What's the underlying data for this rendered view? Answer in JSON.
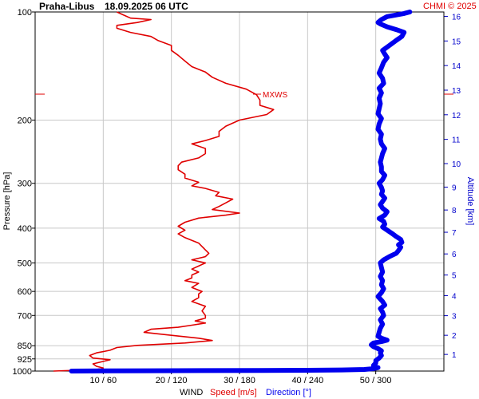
{
  "header": {
    "station": "Praha-Libus",
    "datetime": "18.09.2025 06 UTC",
    "copyright": "CHMI © 2025"
  },
  "colors": {
    "speed": "#e00000",
    "direction": "#0000ee",
    "grid": "#c8c8c8",
    "axis_right": "#0000cc"
  },
  "chart_data": {
    "type": "line",
    "y_axis": {
      "label": "Pressure [hPa]",
      "scale": "log",
      "ticks": [
        100,
        200,
        300,
        400,
        500,
        600,
        700,
        850,
        925,
        1000
      ],
      "range": [
        100,
        1000
      ]
    },
    "y2_axis": {
      "label": "Altitude [km]",
      "ticks": [
        1,
        2,
        3,
        4,
        5,
        6,
        7,
        8,
        9,
        10,
        11,
        12,
        13,
        14,
        15,
        16
      ]
    },
    "x_axis": {
      "ticks": [
        "10 / 60",
        "20 / 120",
        "30 / 180",
        "40 / 240",
        "50 / 300"
      ],
      "range_speed": [
        0,
        60
      ],
      "range_direction": [
        0,
        360
      ],
      "label_wind": "WIND",
      "label_speed": "Speed [m/s]",
      "label_direction": "Direction [°]"
    },
    "annotation": {
      "text": "MXWS",
      "pressure": 175
    },
    "series": [
      {
        "name": "Speed [m/s]",
        "points": [
          [
            1000,
            2.7
          ],
          [
            995,
            6
          ],
          [
            990,
            9
          ],
          [
            980,
            10
          ],
          [
            970,
            9
          ],
          [
            955,
            8.5
          ],
          [
            940,
            10
          ],
          [
            930,
            11
          ],
          [
            920,
            8.5
          ],
          [
            905,
            8
          ],
          [
            890,
            9
          ],
          [
            875,
            11
          ],
          [
            860,
            12
          ],
          [
            848,
            15
          ],
          [
            835,
            22
          ],
          [
            822,
            26
          ],
          [
            810,
            24
          ],
          [
            795,
            20
          ],
          [
            780,
            16
          ],
          [
            765,
            17
          ],
          [
            755,
            21
          ],
          [
            745,
            23
          ],
          [
            735,
            25
          ],
          [
            725,
            23.5
          ],
          [
            712,
            25
          ],
          [
            700,
            25
          ],
          [
            680,
            24.5
          ],
          [
            660,
            25
          ],
          [
            640,
            23
          ],
          [
            625,
            24
          ],
          [
            610,
            24
          ],
          [
            600,
            24.5
          ],
          [
            585,
            23
          ],
          [
            570,
            24
          ],
          [
            560,
            22
          ],
          [
            550,
            23
          ],
          [
            540,
            23
          ],
          [
            530,
            24
          ],
          [
            520,
            23
          ],
          [
            510,
            24
          ],
          [
            500,
            25
          ],
          [
            490,
            23
          ],
          [
            480,
            25
          ],
          [
            470,
            25.5
          ],
          [
            460,
            25
          ],
          [
            450,
            24.5
          ],
          [
            440,
            24
          ],
          [
            425,
            22
          ],
          [
            415,
            21
          ],
          [
            405,
            22
          ],
          [
            395,
            21
          ],
          [
            385,
            22
          ],
          [
            375,
            24
          ],
          [
            368,
            28
          ],
          [
            363,
            30
          ],
          [
            355,
            26
          ],
          [
            348,
            27
          ],
          [
            340,
            28
          ],
          [
            332,
            29
          ],
          [
            325,
            26.5
          ],
          [
            318,
            27
          ],
          [
            310,
            25
          ],
          [
            305,
            23
          ],
          [
            298,
            24
          ],
          [
            290,
            22
          ],
          [
            283,
            22
          ],
          [
            275,
            21
          ],
          [
            268,
            21
          ],
          [
            262,
            21.5
          ],
          [
            255,
            24
          ],
          [
            248,
            25
          ],
          [
            240,
            25
          ],
          [
            233,
            23
          ],
          [
            228,
            25
          ],
          [
            222,
            27
          ],
          [
            215,
            27
          ],
          [
            208,
            28
          ],
          [
            200,
            30
          ],
          [
            193,
            34
          ],
          [
            187,
            35
          ],
          [
            182,
            33
          ],
          [
            176,
            33
          ],
          [
            170,
            32.5
          ],
          [
            164,
            31
          ],
          [
            158,
            28
          ],
          [
            152,
            26
          ],
          [
            147,
            25
          ],
          [
            142,
            23
          ],
          [
            137,
            22
          ],
          [
            132,
            21
          ],
          [
            128,
            20
          ],
          [
            124,
            20
          ],
          [
            120,
            18
          ],
          [
            117,
            17
          ],
          [
            114,
            14
          ],
          [
            111,
            12
          ],
          [
            109,
            12
          ],
          [
            107,
            15
          ],
          [
            105,
            17
          ],
          [
            104,
            14
          ],
          [
            102,
            13
          ],
          [
            100,
            12
          ]
        ]
      },
      {
        "name": "Direction [°]",
        "points": [
          [
            1000,
            32
          ],
          [
            999,
            60
          ],
          [
            998,
            100
          ],
          [
            997,
            150
          ],
          [
            996,
            200
          ],
          [
            995,
            240
          ],
          [
            993,
            270
          ],
          [
            990,
            290
          ],
          [
            985,
            298
          ],
          [
            978,
            302
          ],
          [
            972,
            298
          ],
          [
            965,
            298
          ],
          [
            950,
            300
          ],
          [
            935,
            300
          ],
          [
            920,
            303
          ],
          [
            905,
            305
          ],
          [
            890,
            304
          ],
          [
            878,
            305
          ],
          [
            866,
            302
          ],
          [
            855,
            298
          ],
          [
            845,
            296
          ],
          [
            835,
            298
          ],
          [
            828,
            305
          ],
          [
            820,
            310
          ],
          [
            810,
            305
          ],
          [
            800,
            302
          ],
          [
            780,
            303
          ],
          [
            760,
            304
          ],
          [
            740,
            306
          ],
          [
            720,
            304
          ],
          [
            700,
            307
          ],
          [
            685,
            306
          ],
          [
            670,
            304
          ],
          [
            655,
            308
          ],
          [
            640,
            306
          ],
          [
            620,
            302
          ],
          [
            605,
            305
          ],
          [
            590,
            307
          ],
          [
            575,
            305
          ],
          [
            560,
            306
          ],
          [
            545,
            304
          ],
          [
            530,
            306
          ],
          [
            515,
            305
          ],
          [
            500,
            304
          ],
          [
            490,
            307
          ],
          [
            480,
            312
          ],
          [
            470,
            318
          ],
          [
            462,
            320
          ],
          [
            452,
            322
          ],
          [
            445,
            320
          ],
          [
            438,
            323
          ],
          [
            430,
            322
          ],
          [
            422,
            318
          ],
          [
            413,
            314
          ],
          [
            405,
            310
          ],
          [
            397,
            306
          ],
          [
            390,
            308
          ],
          [
            383,
            307
          ],
          [
            376,
            303
          ],
          [
            368,
            308
          ],
          [
            360,
            310
          ],
          [
            352,
            306
          ],
          [
            344,
            304
          ],
          [
            337,
            306
          ],
          [
            330,
            308
          ],
          [
            322,
            305
          ],
          [
            315,
            306
          ],
          [
            308,
            305
          ],
          [
            300,
            303
          ],
          [
            293,
            306
          ],
          [
            285,
            308
          ],
          [
            278,
            305
          ],
          [
            270,
            305
          ],
          [
            262,
            304
          ],
          [
            255,
            305
          ],
          [
            248,
            306
          ],
          [
            240,
            308
          ],
          [
            233,
            305
          ],
          [
            226,
            304
          ],
          [
            219,
            305
          ],
          [
            212,
            302
          ],
          [
            205,
            303
          ],
          [
            198,
            305
          ],
          [
            192,
            302
          ],
          [
            186,
            303
          ],
          [
            180,
            304
          ],
          [
            174,
            303
          ],
          [
            168,
            305
          ],
          [
            163,
            303
          ],
          [
            158,
            307
          ],
          [
            153,
            306
          ],
          [
            148,
            303
          ],
          [
            143,
            305
          ],
          [
            138,
            307
          ],
          [
            134,
            310
          ],
          [
            131,
            308
          ],
          [
            128,
            306
          ],
          [
            124,
            312
          ],
          [
            120,
            318
          ],
          [
            117,
            323
          ],
          [
            114,
            325
          ],
          [
            112,
            318
          ],
          [
            110,
            310
          ],
          [
            108,
            304
          ],
          [
            107,
            302
          ],
          [
            105,
            305
          ],
          [
            103,
            310
          ],
          [
            101,
            325
          ],
          [
            100,
            330
          ]
        ]
      }
    ]
  }
}
